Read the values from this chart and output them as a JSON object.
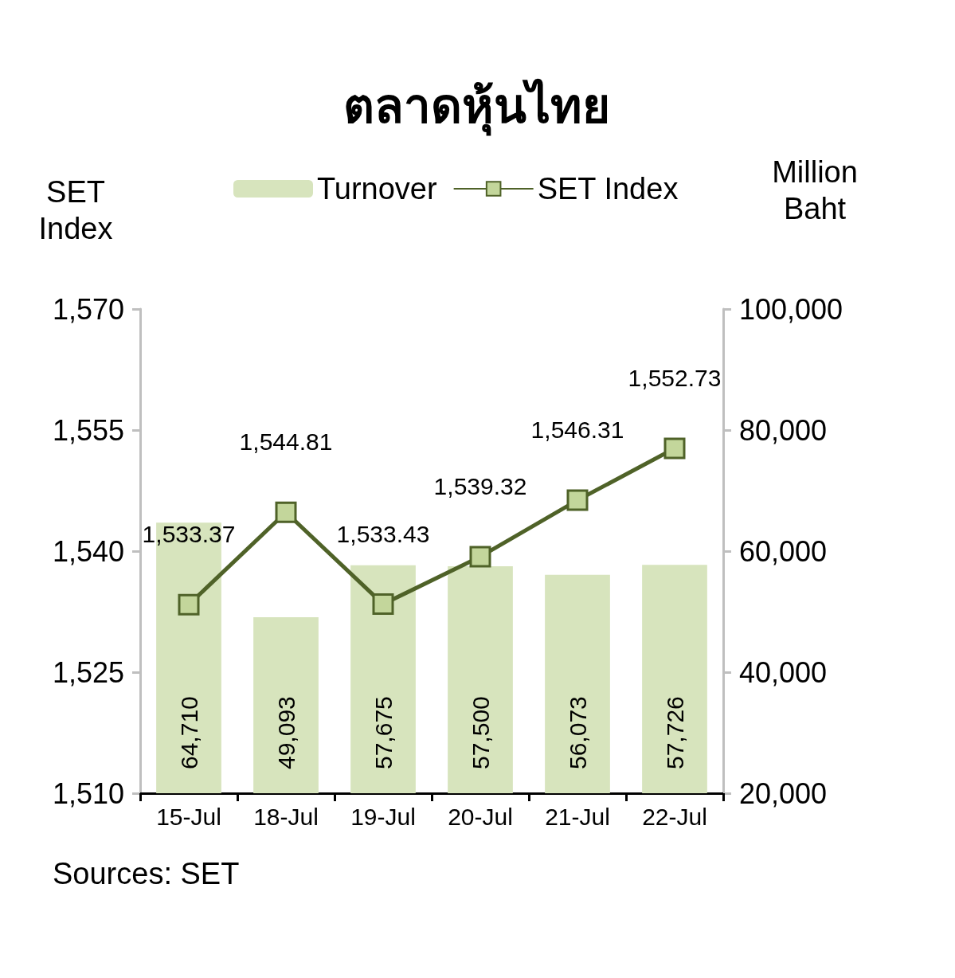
{
  "chart_data": {
    "type": "bar",
    "title": "ตลาดหุ้นไทย",
    "ylabel": "SET\nIndex",
    "y2label": "Million\nBaht",
    "categories": [
      "15-Jul",
      "18-Jul",
      "19-Jul",
      "20-Jul",
      "21-Jul",
      "22-Jul"
    ],
    "series": [
      {
        "name": "Turnover",
        "axis": "y2",
        "color": "#d7e4bd",
        "values": [
          64710,
          49093,
          57675,
          57500,
          56073,
          57726
        ],
        "value_labels": [
          "64,710",
          "49,093",
          "57,675",
          "57,500",
          "56,073",
          "57,726"
        ]
      },
      {
        "name": "SET Index",
        "type": "line",
        "color": "#4f6228",
        "values": [
          1533.37,
          1544.81,
          1533.43,
          1539.32,
          1546.31,
          1552.73
        ],
        "value_labels": [
          "1,533.37",
          "1,544.81",
          "1,533.43",
          "1,539.32",
          "1,546.31",
          "1,552.73"
        ]
      }
    ],
    "ylim": [
      1510,
      1570
    ],
    "yticks": [
      {
        "value": 1510,
        "label": "1,510"
      },
      {
        "value": 1525,
        "label": "1,525"
      },
      {
        "value": 1540,
        "label": "1,540"
      },
      {
        "value": 1555,
        "label": "1,555"
      },
      {
        "value": 1570,
        "label": "1,570"
      }
    ],
    "y2lim": [
      20000,
      100000
    ],
    "y2ticks": [
      {
        "value": 20000,
        "label": "20,000"
      },
      {
        "value": 40000,
        "label": "40,000"
      },
      {
        "value": 60000,
        "label": "60,000"
      },
      {
        "value": 80000,
        "label": "80,000"
      },
      {
        "value": 100000,
        "label": "100,000"
      }
    ],
    "legend": "top",
    "marker": "square",
    "grid": false,
    "annotations": [
      "Sources: SET"
    ]
  }
}
